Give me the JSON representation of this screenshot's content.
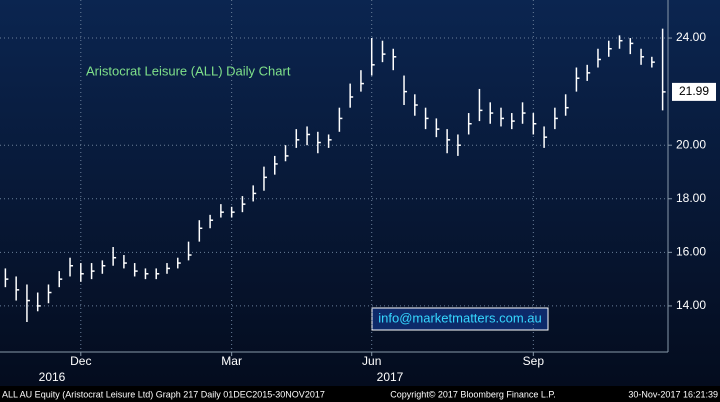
{
  "chart_data": {
    "type": "ohlc",
    "title": "Aristocrat Leisure (ALL) Daily Chart",
    "annotation": "info@marketmatters.com.au",
    "categories": [
      null,
      null,
      null,
      null,
      null,
      null,
      null,
      "Dec",
      null,
      null,
      null,
      null,
      null,
      null,
      null,
      null,
      null,
      null,
      null,
      null,
      null,
      "Mar",
      null,
      null,
      null,
      null,
      null,
      null,
      null,
      null,
      null,
      null,
      null,
      null,
      "Jun",
      null,
      null,
      null,
      null,
      null,
      null,
      null,
      null,
      null,
      null,
      null,
      null,
      null,
      null,
      "Sep",
      null,
      null,
      null,
      null,
      null,
      null,
      null,
      null,
      null,
      null,
      null,
      null
    ],
    "years": [
      "2016",
      "2017"
    ],
    "high": [
      15.4,
      15.1,
      14.8,
      14.5,
      14.8,
      15.3,
      15.8,
      15.6,
      15.6,
      15.7,
      16.2,
      15.9,
      15.6,
      15.4,
      15.4,
      15.6,
      15.8,
      16.4,
      17.2,
      17.4,
      17.8,
      17.7,
      18.1,
      18.5,
      19.2,
      19.6,
      20.0,
      20.6,
      20.7,
      20.5,
      20.4,
      21.4,
      22.3,
      22.8,
      24.0,
      23.9,
      23.6,
      22.6,
      21.9,
      21.4,
      21.0,
      20.6,
      20.4,
      21.2,
      22.1,
      21.6,
      21.4,
      21.2,
      21.6,
      21.2,
      20.7,
      21.4,
      21.9,
      22.9,
      23.0,
      23.6,
      23.9,
      24.1,
      24.0,
      23.6,
      23.3,
      24.35
    ],
    "low": [
      14.7,
      14.2,
      13.4,
      13.8,
      14.1,
      14.7,
      15.1,
      14.9,
      15.0,
      15.2,
      15.5,
      15.4,
      15.1,
      15.0,
      15.0,
      15.2,
      15.4,
      15.7,
      16.4,
      16.9,
      17.3,
      17.3,
      17.5,
      17.9,
      18.3,
      18.9,
      19.4,
      19.9,
      20.0,
      19.7,
      19.9,
      20.5,
      21.4,
      22.0,
      22.6,
      23.1,
      22.8,
      21.5,
      21.1,
      20.6,
      20.3,
      19.7,
      19.6,
      20.4,
      20.9,
      20.8,
      20.7,
      20.6,
      20.8,
      20.4,
      19.9,
      20.6,
      21.1,
      22.0,
      22.4,
      22.9,
      23.3,
      23.6,
      23.4,
      23.0,
      22.9,
      21.3
    ],
    "close": [
      15.0,
      14.6,
      14.2,
      14.0,
      14.5,
      15.0,
      15.5,
      15.2,
      15.3,
      15.5,
      15.8,
      15.6,
      15.3,
      15.2,
      15.2,
      15.4,
      15.6,
      15.9,
      16.9,
      17.2,
      17.5,
      17.5,
      17.8,
      18.2,
      18.8,
      19.3,
      19.6,
      20.2,
      20.4,
      20.1,
      20.2,
      21.0,
      21.8,
      22.3,
      23.0,
      23.4,
      23.3,
      22.0,
      21.5,
      21.0,
      20.6,
      20.2,
      20.0,
      20.8,
      21.3,
      21.2,
      21.0,
      20.9,
      21.2,
      20.8,
      20.3,
      21.0,
      21.4,
      22.5,
      22.7,
      23.2,
      23.6,
      23.9,
      23.8,
      23.3,
      23.1,
      21.99
    ],
    "color": "#ffffff",
    "title_color": "#7fe08a",
    "ylim": [
      12.28,
      25.42
    ],
    "yticks": [
      {
        "value": 14,
        "label": "14.00"
      },
      {
        "value": 16,
        "label": "16.00"
      },
      {
        "value": 18,
        "label": "18.00"
      },
      {
        "value": 20,
        "label": "20.00"
      },
      {
        "value": 24,
        "label": "24.00"
      }
    ],
    "grid": true
  },
  "footer": {
    "left": "ALL AU Equity (Aristocrat Leisure Ltd) Graph 217  Daily 01DEC2015-30NOV2017",
    "center": "Copyright© 2017 Bloomberg Finance L.P.",
    "right": "30-Nov-2017 16:21:39"
  }
}
